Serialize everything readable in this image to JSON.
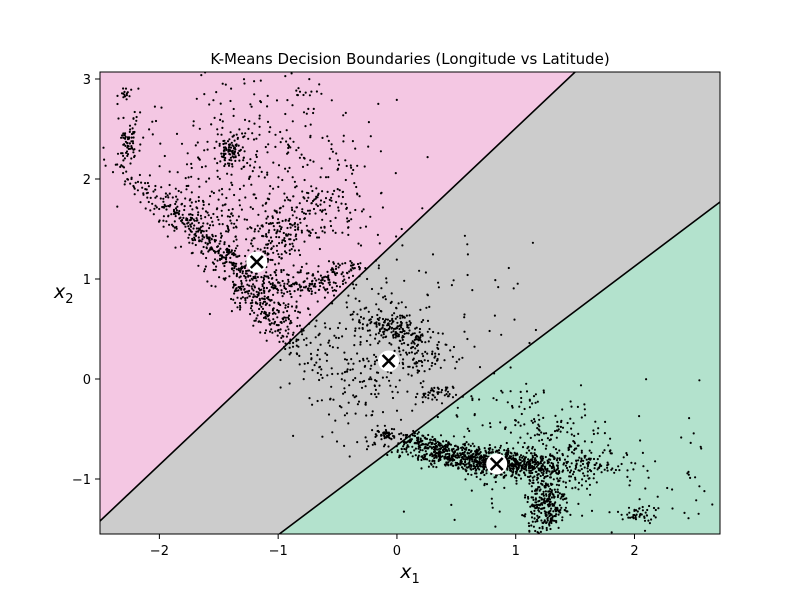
{
  "chart_data": {
    "type": "scatter",
    "title": "K-Means Decision Boundaries (Longitude vs Latitude)",
    "xlabel": {
      "base": "x",
      "sub": "1"
    },
    "ylabel": {
      "base": "x",
      "sub": "2"
    },
    "xlim": [
      -2.5,
      2.72
    ],
    "ylim": [
      -1.55,
      3.07
    ],
    "xticks": [
      {
        "value": -2,
        "label": "−2"
      },
      {
        "value": -1,
        "label": "−1"
      },
      {
        "value": 0,
        "label": "0"
      },
      {
        "value": 1,
        "label": "1"
      },
      {
        "value": 2,
        "label": "2"
      }
    ],
    "yticks": [
      {
        "value": -1,
        "label": "−1"
      },
      {
        "value": 0,
        "label": "0"
      },
      {
        "value": 1,
        "label": "1"
      },
      {
        "value": 2,
        "label": "2"
      },
      {
        "value": 3,
        "label": "3"
      }
    ],
    "grid": false,
    "legend": "none",
    "regions": [
      {
        "id": "pink",
        "color": "#f4c7e3"
      },
      {
        "id": "gray",
        "color": "#cccccc"
      },
      {
        "id": "green",
        "color": "#b3e2cd"
      }
    ],
    "boundaries": [
      {
        "id": "upper",
        "p1": [
          -2.5,
          -1.42
        ],
        "p2": [
          1.5,
          3.07
        ]
      },
      {
        "id": "lower",
        "p1": [
          -0.99,
          -1.55
        ],
        "p2": [
          2.72,
          1.77
        ]
      }
    ],
    "centroids": [
      {
        "x": -1.18,
        "y": 1.17
      },
      {
        "x": -0.07,
        "y": 0.18
      },
      {
        "x": 0.84,
        "y": -0.85
      }
    ],
    "point_clusters": [
      {
        "cx": -2.25,
        "cy": 2.4,
        "sx": 0.05,
        "sy": 0.12,
        "n": 70,
        "rot": 0
      },
      {
        "cx": -2.3,
        "cy": 2.85,
        "sx": 0.05,
        "sy": 0.04,
        "n": 15,
        "rot": 0
      },
      {
        "cx": -1.4,
        "cy": 2.28,
        "sx": 0.06,
        "sy": 0.08,
        "n": 90,
        "rot": 0
      },
      {
        "cx": -1.6,
        "cy": 1.4,
        "sx": 0.6,
        "sy": 0.06,
        "n": 360,
        "rot": -0.75
      },
      {
        "cx": -1.15,
        "cy": 0.75,
        "sx": 0.35,
        "sy": 0.08,
        "n": 300,
        "rot": -0.9
      },
      {
        "cx": -0.95,
        "cy": 1.45,
        "sx": 0.3,
        "sy": 0.12,
        "n": 220,
        "rot": 0.9
      },
      {
        "cx": -0.75,
        "cy": 0.95,
        "sx": 0.15,
        "sy": 0.06,
        "n": 120,
        "rot": 0
      },
      {
        "cx": -1.6,
        "cy": 1.65,
        "sx": 0.2,
        "sy": 0.1,
        "n": 80,
        "rot": -0.5
      },
      {
        "cx": -1.2,
        "cy": 2.0,
        "sx": 0.45,
        "sy": 0.45,
        "n": 260,
        "rot": 0
      },
      {
        "cx": -1.0,
        "cy": 2.6,
        "sx": 0.45,
        "sy": 0.3,
        "n": 90,
        "rot": 0
      },
      {
        "cx": -0.4,
        "cy": 1.8,
        "sx": 0.15,
        "sy": 0.3,
        "n": 60,
        "rot": 0
      },
      {
        "cx": -0.45,
        "cy": 1.1,
        "sx": 0.08,
        "sy": 0.04,
        "n": 40,
        "rot": 0
      },
      {
        "cx": 0.0,
        "cy": 0.5,
        "sx": 0.15,
        "sy": 0.06,
        "n": 160,
        "rot": -0.3
      },
      {
        "cx": -0.3,
        "cy": 0.1,
        "sx": 0.25,
        "sy": 0.35,
        "n": 200,
        "rot": 0
      },
      {
        "cx": 0.2,
        "cy": 0.25,
        "sx": 0.12,
        "sy": 0.1,
        "n": 70,
        "rot": 0
      },
      {
        "cx": 0.3,
        "cy": -0.15,
        "sx": 0.08,
        "sy": 0.04,
        "n": 40,
        "rot": 0
      },
      {
        "cx": -0.1,
        "cy": -0.55,
        "sx": 0.06,
        "sy": 0.03,
        "n": 40,
        "rot": 0
      },
      {
        "cx": 0.0,
        "cy": 0.7,
        "sx": 0.5,
        "sy": 0.45,
        "n": 120,
        "rot": 0
      },
      {
        "cx": 0.65,
        "cy": -0.8,
        "sx": 0.35,
        "sy": 0.07,
        "n": 620,
        "rot": -0.15
      },
      {
        "cx": 0.95,
        "cy": -0.85,
        "sx": 0.25,
        "sy": 0.06,
        "n": 300,
        "rot": 0
      },
      {
        "cx": 1.25,
        "cy": -1.25,
        "sx": 0.08,
        "sy": 0.15,
        "n": 280,
        "rot": 0
      },
      {
        "cx": 0.3,
        "cy": -0.65,
        "sx": 0.18,
        "sy": 0.04,
        "n": 140,
        "rot": -0.3
      },
      {
        "cx": 1.3,
        "cy": -0.6,
        "sx": 0.25,
        "sy": 0.2,
        "n": 140,
        "rot": 0
      },
      {
        "cx": 1.6,
        "cy": -0.85,
        "sx": 0.2,
        "sy": 0.08,
        "n": 90,
        "rot": 0
      },
      {
        "cx": 2.05,
        "cy": -1.35,
        "sx": 0.08,
        "sy": 0.04,
        "n": 40,
        "rot": 0
      },
      {
        "cx": 1.6,
        "cy": -1.1,
        "sx": 0.6,
        "sy": 0.35,
        "n": 130,
        "rot": 0
      },
      {
        "cx": 0.75,
        "cy": -0.25,
        "sx": 0.3,
        "sy": 0.15,
        "n": 40,
        "rot": 0
      },
      {
        "cx": 2.5,
        "cy": -0.6,
        "sx": 0.05,
        "sy": 0.5,
        "n": 8,
        "rot": 0
      }
    ]
  }
}
